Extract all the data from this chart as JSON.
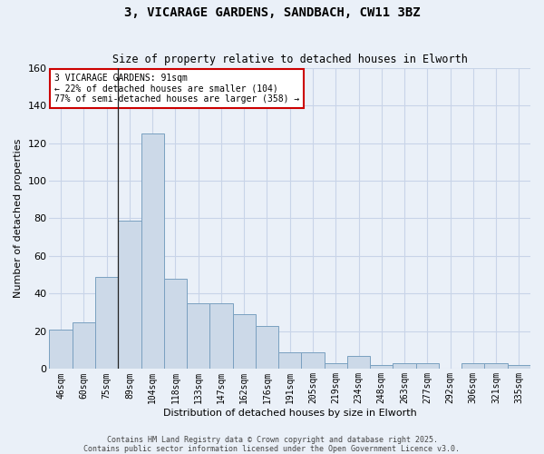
{
  "title": "3, VICARAGE GARDENS, SANDBACH, CW11 3BZ",
  "subtitle": "Size of property relative to detached houses in Elworth",
  "xlabel": "Distribution of detached houses by size in Elworth",
  "ylabel": "Number of detached properties",
  "categories": [
    "46sqm",
    "60sqm",
    "75sqm",
    "89sqm",
    "104sqm",
    "118sqm",
    "133sqm",
    "147sqm",
    "162sqm",
    "176sqm",
    "191sqm",
    "205sqm",
    "219sqm",
    "234sqm",
    "248sqm",
    "263sqm",
    "277sqm",
    "292sqm",
    "306sqm",
    "321sqm",
    "335sqm"
  ],
  "values": [
    21,
    25,
    49,
    79,
    125,
    48,
    35,
    35,
    29,
    23,
    9,
    9,
    3,
    7,
    2,
    3,
    3,
    0,
    3,
    3,
    2
  ],
  "bar_color": "#ccd9e8",
  "bar_edge_color": "#7aa0c0",
  "grid_color": "#c8d4e8",
  "background_color": "#eaf0f8",
  "ylim": [
    0,
    160
  ],
  "yticks": [
    0,
    20,
    40,
    60,
    80,
    100,
    120,
    140,
    160
  ],
  "annotation_text": "3 VICARAGE GARDENS: 91sqm\n← 22% of detached houses are smaller (104)\n77% of semi-detached houses are larger (358) →",
  "annotation_box_color": "#ffffff",
  "annotation_box_edge": "#cc0000",
  "vline_x": 2.5,
  "footer": "Contains HM Land Registry data © Crown copyright and database right 2025.\nContains public sector information licensed under the Open Government Licence v3.0."
}
